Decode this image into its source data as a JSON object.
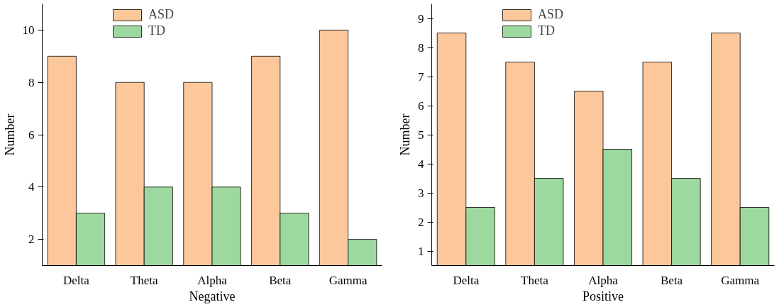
{
  "chart_data": [
    {
      "type": "bar",
      "xlabel": "Negative",
      "ylabel": "Number",
      "categories": [
        "Delta",
        "Theta",
        "Alpha",
        "Beta",
        "Gamma"
      ],
      "series": [
        {
          "name": "ASD",
          "color": "#fcc89b",
          "values": [
            9,
            8,
            8,
            9,
            10
          ]
        },
        {
          "name": "TD",
          "color": "#9dd89e",
          "values": [
            3,
            4,
            4,
            3,
            2
          ]
        }
      ],
      "ylim": [
        1,
        11
      ],
      "yticks": [
        2,
        4,
        6,
        8,
        10
      ],
      "grid": false,
      "legend": "top left"
    },
    {
      "type": "bar",
      "xlabel": "Positive",
      "ylabel": "Number",
      "categories": [
        "Delta",
        "Theta",
        "Alpha",
        "Beta",
        "Gamma"
      ],
      "series": [
        {
          "name": "ASD",
          "color": "#fcc89b",
          "values": [
            8.5,
            7.5,
            6.5,
            7.5,
            8.5
          ]
        },
        {
          "name": "TD",
          "color": "#9dd89e",
          "values": [
            2.5,
            3.5,
            4.5,
            3.5,
            2.5
          ]
        }
      ],
      "ylim": [
        0.5,
        9.5
      ],
      "yticks": [
        1,
        2,
        3,
        4,
        5,
        6,
        7,
        8,
        9
      ],
      "grid": false,
      "legend": "top left"
    }
  ]
}
